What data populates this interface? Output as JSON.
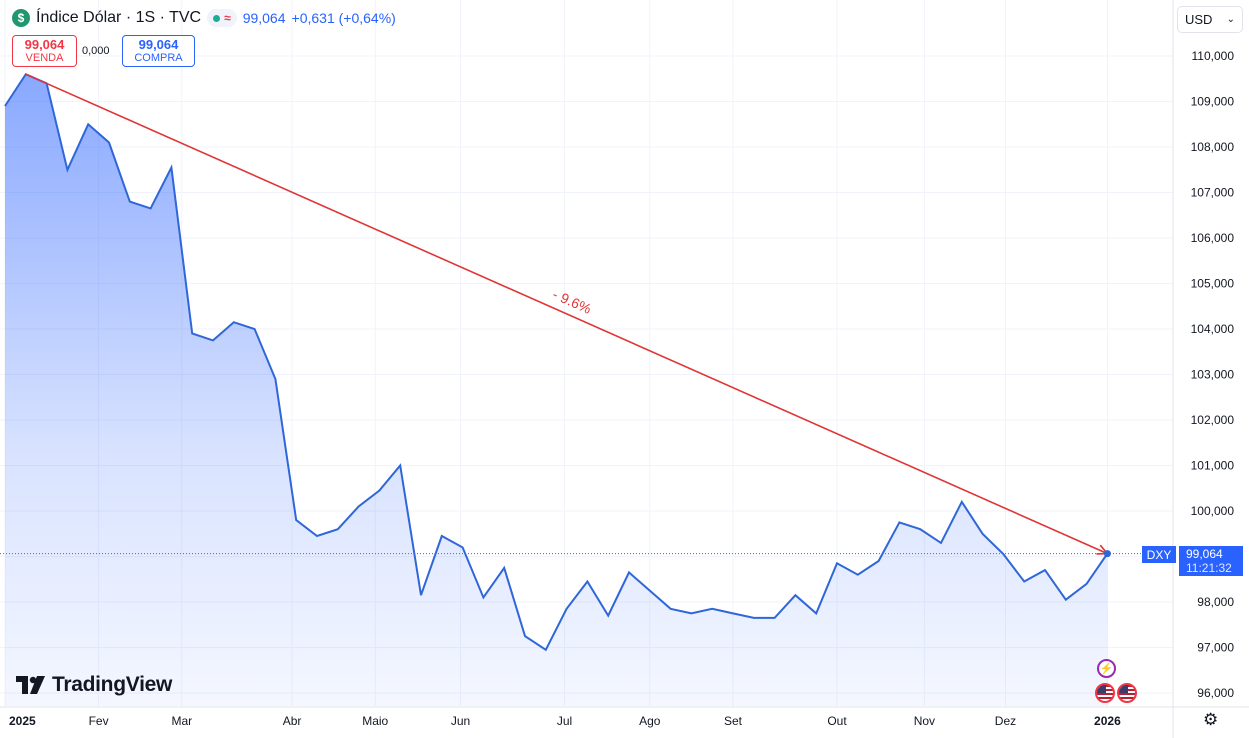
{
  "header": {
    "symbol_icon": "$",
    "title": "Índice Dólar · 1S · TVC",
    "price": "99,064",
    "change": "+0,631 (+0,64%)",
    "status_icons": [
      "market-open-icon",
      "delayed-data-icon"
    ]
  },
  "trade": {
    "sell_price": "99,064",
    "sell_label": "VENDA",
    "spread": "0,000",
    "buy_price": "99,064",
    "buy_label": "COMPRA"
  },
  "currency_button": "USD",
  "brand": "TradingView",
  "price_label": {
    "symbol": "DXY",
    "value": "99,064",
    "countdown": "11:21:32"
  },
  "colors": {
    "line": "#2f66d8",
    "trend": "#e03535",
    "label_bg": "#2962ff"
  },
  "chart_data": {
    "type": "area",
    "ylim": [
      95.5,
      110.8
    ],
    "y_ticks": [
      {
        "value": 110,
        "label": "110,000"
      },
      {
        "value": 109,
        "label": "109,000"
      },
      {
        "value": 108,
        "label": "108,000"
      },
      {
        "value": 107,
        "label": "107,000"
      },
      {
        "value": 106,
        "label": "106,000"
      },
      {
        "value": 105,
        "label": "105,000"
      },
      {
        "value": 104,
        "label": "104,000"
      },
      {
        "value": 103,
        "label": "103,000"
      },
      {
        "value": 102,
        "label": "102,000"
      },
      {
        "value": 101,
        "label": "101,000"
      },
      {
        "value": 100,
        "label": "100,000"
      },
      {
        "value": 98,
        "label": "98,000"
      },
      {
        "value": 97,
        "label": "97,000"
      },
      {
        "value": 96,
        "label": "96,000"
      }
    ],
    "x_ticks": [
      {
        "week": 0,
        "label": "2025",
        "bold": true
      },
      {
        "week": 4.5,
        "label": "Fev"
      },
      {
        "week": 8.5,
        "label": "Mar"
      },
      {
        "week": 13.8,
        "label": "Abr"
      },
      {
        "week": 17.8,
        "label": "Maio"
      },
      {
        "week": 21.9,
        "label": "Jun"
      },
      {
        "week": 26.9,
        "label": "Jul"
      },
      {
        "week": 31,
        "label": "Ago"
      },
      {
        "week": 35,
        "label": "Set"
      },
      {
        "week": 40,
        "label": "Out"
      },
      {
        "week": 44.2,
        "label": "Nov"
      },
      {
        "week": 48.1,
        "label": "Dez"
      },
      {
        "week": 53,
        "label": "2026",
        "bold": true
      }
    ],
    "values": [
      108.9,
      109.6,
      109.4,
      107.5,
      108.5,
      108.1,
      106.8,
      106.65,
      107.55,
      103.9,
      103.75,
      104.15,
      104.0,
      102.9,
      99.8,
      99.45,
      99.6,
      100.1,
      100.45,
      101.0,
      98.15,
      99.45,
      99.2,
      98.1,
      98.75,
      97.25,
      96.95,
      97.85,
      98.45,
      97.7,
      98.65,
      98.25,
      97.85,
      97.75,
      97.85,
      97.75,
      97.65,
      97.65,
      98.15,
      97.75,
      98.85,
      98.6,
      98.9,
      99.75,
      99.6,
      99.3,
      100.2,
      99.5,
      99.05,
      98.45,
      98.7,
      98.05,
      98.4,
      99.064
    ],
    "last_value": 99.064,
    "trend_line": {
      "from_week": 1,
      "from_value": 109.6,
      "to_week": 53,
      "to_value": 99.064,
      "label": "- 9.6%"
    },
    "grid": true
  }
}
